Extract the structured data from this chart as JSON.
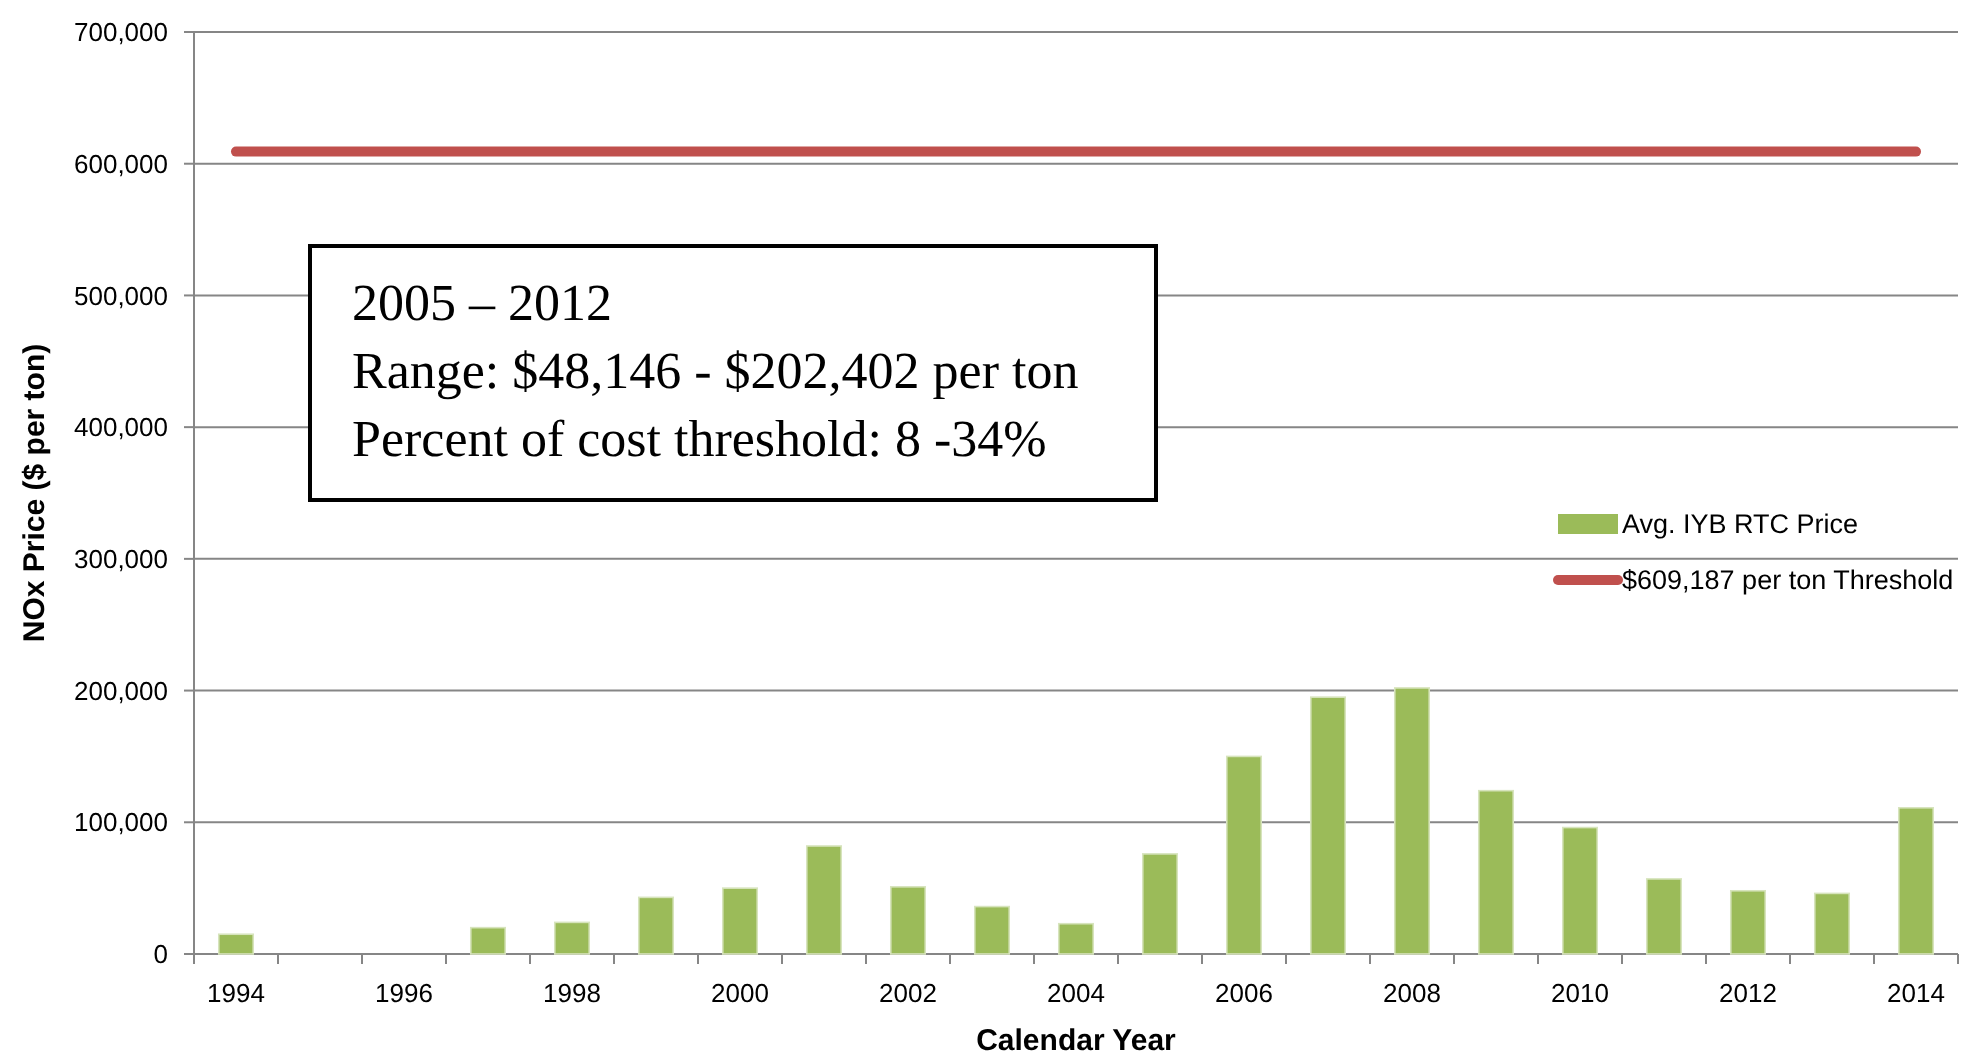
{
  "chart_data": {
    "type": "bar",
    "xlabel": "Calendar Year",
    "ylabel": "NOx Price ($ per ton)",
    "categories": [
      "1994",
      null,
      "1996",
      null,
      "1998",
      null,
      "2000",
      null,
      "2002",
      null,
      "2004",
      null,
      "2006",
      null,
      "2008",
      null,
      "2010",
      null,
      "2012",
      null,
      "2014"
    ],
    "series": [
      {
        "name": "Avg. IYB RTC Price",
        "color": "#9bbb59",
        "values": [
          15000,
          null,
          null,
          20000,
          24000,
          43000,
          50000,
          82000,
          51000,
          36000,
          23000,
          76000,
          150000,
          195000,
          202000,
          124000,
          96000,
          57000,
          48000,
          46000,
          111000
        ]
      },
      {
        "name": "$609,187 per ton Threshold",
        "type": "line",
        "color": "#c0504d",
        "values": [
          609187,
          609187,
          609187,
          609187,
          609187,
          609187,
          609187,
          609187,
          609187,
          609187,
          609187,
          609187,
          609187,
          609187,
          609187,
          609187,
          609187,
          609187,
          609187,
          609187,
          609187
        ]
      }
    ],
    "ylim": [
      0,
      700000
    ],
    "yticks": [
      {
        "value": 0,
        "label": "0"
      },
      {
        "value": 100000,
        "label": "100,000"
      },
      {
        "value": 200000,
        "label": "200,000"
      },
      {
        "value": 300000,
        "label": "300,000"
      },
      {
        "value": 400000,
        "label": "400,000"
      },
      {
        "value": 500000,
        "label": "500,000"
      },
      {
        "value": 600000,
        "label": "600,000"
      },
      {
        "value": 700000,
        "label": "700,000"
      }
    ],
    "grid": "y",
    "legend": "right",
    "annotations": [
      "2005 – 2012",
      "Range: $48,146 - $202,402 per ton",
      "Percent of cost threshold: 8 -34%"
    ]
  }
}
